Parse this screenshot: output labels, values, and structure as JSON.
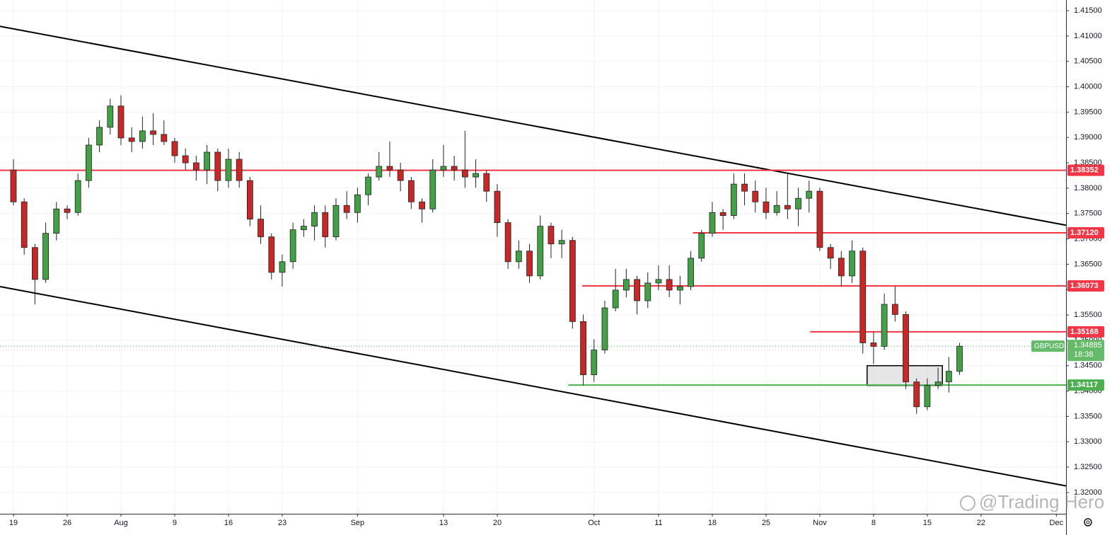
{
  "chart_data": {
    "type": "candlestick",
    "symbol": "GBPUSD",
    "price": 1.34885,
    "countdown": "18:38",
    "watermark": "@Trading Hero",
    "up_color": "#43a047",
    "down_color": "#c62828",
    "grid": true,
    "xlim": [
      -1.25,
      97.9
    ],
    "ylim": [
      1.3158,
      1.4171
    ],
    "xticks": [
      {
        "value": 0,
        "label": "19"
      },
      {
        "value": 5,
        "label": "26"
      },
      {
        "value": 10,
        "label": "Aug"
      },
      {
        "value": 15,
        "label": "9"
      },
      {
        "value": 20,
        "label": "16"
      },
      {
        "value": 25,
        "label": "23"
      },
      {
        "value": 32,
        "label": "Sep"
      },
      {
        "value": 40,
        "label": "13"
      },
      {
        "value": 45,
        "label": "20"
      },
      {
        "value": 54,
        "label": "Oct"
      },
      {
        "value": 60,
        "label": "11"
      },
      {
        "value": 65,
        "label": "18"
      },
      {
        "value": 70,
        "label": "25"
      },
      {
        "value": 75,
        "label": "Nov"
      },
      {
        "value": 80,
        "label": "8"
      },
      {
        "value": 85,
        "label": "15"
      },
      {
        "value": 90,
        "label": "22"
      },
      {
        "value": 97,
        "label": "Dec"
      }
    ],
    "yticks": [
      {
        "value": 1.415,
        "label": "1.41500"
      },
      {
        "value": 1.41,
        "label": "1.41000"
      },
      {
        "value": 1.405,
        "label": "1.40500"
      },
      {
        "value": 1.4,
        "label": "1.40000"
      },
      {
        "value": 1.395,
        "label": "1.39500"
      },
      {
        "value": 1.39,
        "label": "1.39000"
      },
      {
        "value": 1.385,
        "label": "1.38500"
      },
      {
        "value": 1.38,
        "label": "1.38000"
      },
      {
        "value": 1.375,
        "label": "1.37500"
      },
      {
        "value": 1.37,
        "label": "1.37000"
      },
      {
        "value": 1.365,
        "label": "1.36500"
      },
      {
        "value": 1.36,
        "label": "1.36000"
      },
      {
        "value": 1.355,
        "label": "1.35500"
      },
      {
        "value": 1.35,
        "label": "1.35000"
      },
      {
        "value": 1.345,
        "label": "1.34500"
      },
      {
        "value": 1.34,
        "label": "1.34000"
      },
      {
        "value": 1.335,
        "label": "1.33500"
      },
      {
        "value": 1.33,
        "label": "1.33000"
      },
      {
        "value": 1.325,
        "label": "1.32500"
      },
      {
        "value": 1.32,
        "label": "1.32000"
      }
    ],
    "candles": [
      [
        1.3836,
        1.3857,
        1.3766,
        1.3773
      ],
      [
        1.3773,
        1.378,
        1.3669,
        1.3683
      ],
      [
        1.3683,
        1.369,
        1.3571,
        1.362
      ],
      [
        1.362,
        1.3732,
        1.3613,
        1.3711
      ],
      [
        1.3711,
        1.3773,
        1.3697,
        1.3759
      ],
      [
        1.3759,
        1.3766,
        1.3739,
        1.3752
      ],
      [
        1.3752,
        1.3829,
        1.3746,
        1.3815
      ],
      [
        1.3815,
        1.3899,
        1.3801,
        1.3885
      ],
      [
        1.3885,
        1.3934,
        1.3871,
        1.392
      ],
      [
        1.392,
        1.3976,
        1.3906,
        1.3962
      ],
      [
        1.3962,
        1.3983,
        1.3885,
        1.3899
      ],
      [
        1.3899,
        1.392,
        1.3871,
        1.3892
      ],
      [
        1.3892,
        1.3941,
        1.3878,
        1.3913
      ],
      [
        1.3913,
        1.3948,
        1.3885,
        1.3906
      ],
      [
        1.3906,
        1.3934,
        1.3885,
        1.3892
      ],
      [
        1.3892,
        1.3899,
        1.385,
        1.3864
      ],
      [
        1.3864,
        1.3878,
        1.3836,
        1.385
      ],
      [
        1.385,
        1.3864,
        1.3815,
        1.3836
      ],
      [
        1.3836,
        1.3885,
        1.3808,
        1.3871
      ],
      [
        1.3871,
        1.3878,
        1.3794,
        1.3815
      ],
      [
        1.3815,
        1.3878,
        1.3801,
        1.3857
      ],
      [
        1.3857,
        1.3871,
        1.3801,
        1.3815
      ],
      [
        1.3815,
        1.3822,
        1.3725,
        1.3739
      ],
      [
        1.3739,
        1.3766,
        1.369,
        1.3704
      ],
      [
        1.3704,
        1.3711,
        1.362,
        1.3634
      ],
      [
        1.3634,
        1.3669,
        1.3606,
        1.3655
      ],
      [
        1.3655,
        1.3732,
        1.3641,
        1.3718
      ],
      [
        1.3718,
        1.3739,
        1.3704,
        1.3725
      ],
      [
        1.3725,
        1.3766,
        1.3697,
        1.3752
      ],
      [
        1.3752,
        1.3766,
        1.3683,
        1.3704
      ],
      [
        1.3704,
        1.378,
        1.3697,
        1.3766
      ],
      [
        1.3766,
        1.3794,
        1.3739,
        1.3752
      ],
      [
        1.3752,
        1.3801,
        1.3732,
        1.3787
      ],
      [
        1.3787,
        1.3829,
        1.3766,
        1.3822
      ],
      [
        1.3822,
        1.3871,
        1.3815,
        1.3843
      ],
      [
        1.3843,
        1.3892,
        1.3822,
        1.3836
      ],
      [
        1.3836,
        1.385,
        1.3794,
        1.3815
      ],
      [
        1.3815,
        1.3822,
        1.3759,
        1.3773
      ],
      [
        1.3773,
        1.378,
        1.3732,
        1.3759
      ],
      [
        1.3759,
        1.3857,
        1.3752,
        1.3836
      ],
      [
        1.3836,
        1.3885,
        1.3822,
        1.3843
      ],
      [
        1.3843,
        1.3864,
        1.3815,
        1.3836
      ],
      [
        1.3836,
        1.3913,
        1.3801,
        1.3822
      ],
      [
        1.3822,
        1.3857,
        1.3801,
        1.3829
      ],
      [
        1.3829,
        1.3836,
        1.3773,
        1.3794
      ],
      [
        1.3794,
        1.3808,
        1.3704,
        1.3732
      ],
      [
        1.3732,
        1.3739,
        1.3641,
        1.3655
      ],
      [
        1.3655,
        1.3697,
        1.3641,
        1.3676
      ],
      [
        1.3676,
        1.369,
        1.3613,
        1.3627
      ],
      [
        1.3627,
        1.3746,
        1.362,
        1.3725
      ],
      [
        1.3725,
        1.3732,
        1.3662,
        1.369
      ],
      [
        1.369,
        1.3718,
        1.3662,
        1.3697
      ],
      [
        1.3697,
        1.3704,
        1.3523,
        1.3537
      ],
      [
        1.3537,
        1.3551,
        1.3411,
        1.3432
      ],
      [
        1.3432,
        1.3502,
        1.3418,
        1.3481
      ],
      [
        1.3481,
        1.3578,
        1.3474,
        1.3564
      ],
      [
        1.3564,
        1.3641,
        1.3557,
        1.3599
      ],
      [
        1.3599,
        1.3641,
        1.3585,
        1.362
      ],
      [
        1.362,
        1.3627,
        1.3551,
        1.3578
      ],
      [
        1.3578,
        1.3634,
        1.3564,
        1.3613
      ],
      [
        1.3613,
        1.3648,
        1.3599,
        1.362
      ],
      [
        1.362,
        1.3648,
        1.3585,
        1.3599
      ],
      [
        1.3599,
        1.3627,
        1.3571,
        1.3606
      ],
      [
        1.3606,
        1.3676,
        1.3599,
        1.3662
      ],
      [
        1.3662,
        1.3718,
        1.3655,
        1.3711
      ],
      [
        1.3711,
        1.3773,
        1.3704,
        1.3752
      ],
      [
        1.3752,
        1.3759,
        1.3718,
        1.3746
      ],
      [
        1.3746,
        1.3829,
        1.3739,
        1.3808
      ],
      [
        1.3808,
        1.3829,
        1.3766,
        1.3794
      ],
      [
        1.3794,
        1.3815,
        1.3752,
        1.3773
      ],
      [
        1.3773,
        1.3801,
        1.3739,
        1.3752
      ],
      [
        1.3752,
        1.3794,
        1.3746,
        1.3766
      ],
      [
        1.3766,
        1.3829,
        1.3739,
        1.3759
      ],
      [
        1.3759,
        1.3801,
        1.3725,
        1.378
      ],
      [
        1.378,
        1.3815,
        1.3752,
        1.3794
      ],
      [
        1.3794,
        1.3801,
        1.3676,
        1.3683
      ],
      [
        1.3683,
        1.369,
        1.3641,
        1.3662
      ],
      [
        1.3662,
        1.3676,
        1.3606,
        1.3627
      ],
      [
        1.3627,
        1.3697,
        1.3613,
        1.3676
      ],
      [
        1.3676,
        1.3683,
        1.3474,
        1.3495
      ],
      [
        1.3495,
        1.3516,
        1.3453,
        1.3488
      ],
      [
        1.3488,
        1.3592,
        1.3481,
        1.3571
      ],
      [
        1.3571,
        1.3606,
        1.3537,
        1.3551
      ],
      [
        1.3551,
        1.3557,
        1.3404,
        1.3418
      ],
      [
        1.3418,
        1.3425,
        1.3355,
        1.3369
      ],
      [
        1.3369,
        1.3425,
        1.3362,
        1.3411
      ],
      [
        1.3411,
        1.3446,
        1.3404,
        1.3418
      ],
      [
        1.3418,
        1.3467,
        1.3397,
        1.3439
      ],
      [
        1.3439,
        1.3495,
        1.3432,
        1.34885
      ]
    ],
    "levels": [
      {
        "value": 1.38352,
        "label": "1.38352",
        "from": -1.25,
        "color": "#f23645"
      },
      {
        "value": 1.3712,
        "label": "1.37120",
        "from": 63.2,
        "color": "#f23645"
      },
      {
        "value": 1.36073,
        "label": "1.36073",
        "from": 52.9,
        "color": "#f23645"
      },
      {
        "value": 1.35168,
        "label": "1.35168",
        "from": 74.1,
        "color": "#f23645"
      },
      {
        "value": 1.34117,
        "label": "1.34117",
        "from": 51.6,
        "color": "#4caf50"
      }
    ],
    "trendlines": [
      [
        [
          -1.25,
          1.4119
        ],
        [
          97.9,
          1.3727
        ]
      ],
      [
        [
          -1.25,
          1.3606
        ],
        [
          97.9,
          1.3213
        ]
      ]
    ],
    "box": {
      "x": [
        79.4,
        86.4
      ],
      "y": [
        1.3411,
        1.345
      ]
    }
  }
}
